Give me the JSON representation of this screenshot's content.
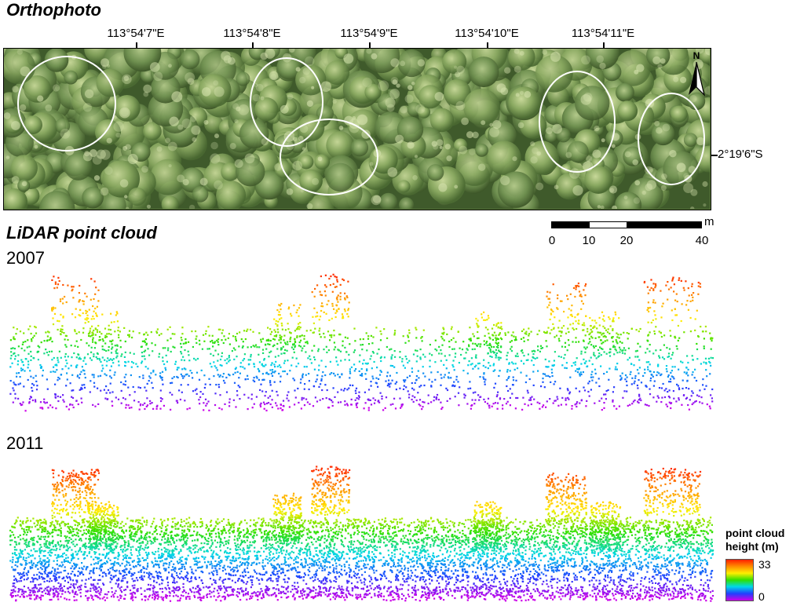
{
  "ortho": {
    "title": "Orthophoto",
    "longitude_labels": [
      "113°54'7\"E",
      "113°54'8\"E",
      "113°54'9\"E",
      "113°54'10\"E",
      "113°54'11\"E"
    ],
    "latitude_label": "2°19'6\"S",
    "north_label": "N"
  },
  "scale_bar": {
    "unit": "m",
    "labels": [
      "0",
      "10",
      "20",
      "40"
    ]
  },
  "lidar": {
    "title": "LiDAR point cloud",
    "year_1": "2007",
    "year_2": "2011"
  },
  "legend": {
    "title_line1": "point cloud",
    "title_line2": "height (m)",
    "max_label": "33",
    "min_label": "0"
  },
  "colors": {
    "canopy_dark": "#3e5a2a",
    "canopy_light": "#b9cc86",
    "circle": "#ffffff",
    "height_ramp": [
      "#d000e8",
      "#2040ff",
      "#00d8e8",
      "#30e000",
      "#ffee00",
      "#ff9000",
      "#ff2000"
    ]
  }
}
